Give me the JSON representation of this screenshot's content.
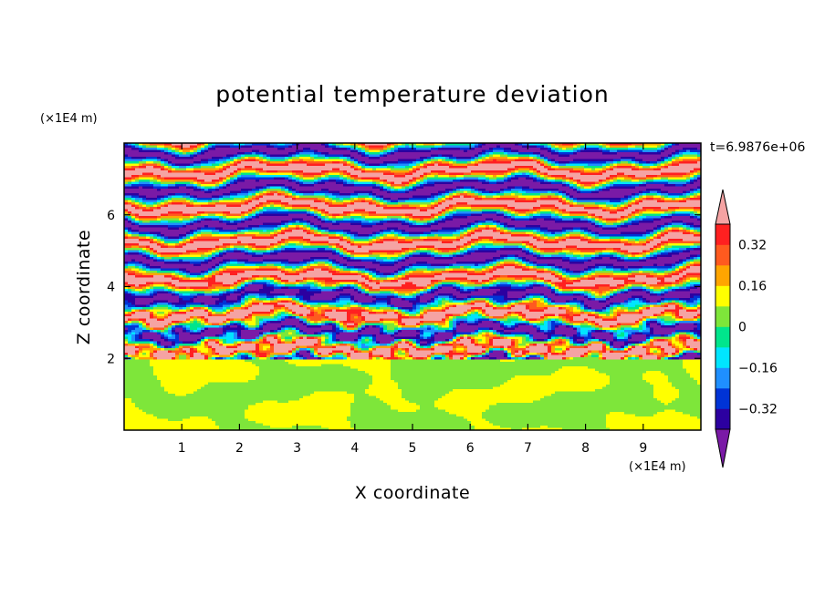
{
  "chart_data": {
    "type": "heatmap",
    "title": "potential temperature deviation",
    "xlabel": "X coordinate",
    "ylabel": "Z coordinate",
    "x_unit": "(×1E4 m)",
    "y_unit": "(×1E4 m)",
    "time_label": "t=6.9876e+06",
    "xlim": [
      0,
      10
    ],
    "ylim": [
      0,
      8
    ],
    "x_ticks": [
      "1",
      "2",
      "3",
      "4",
      "5",
      "6",
      "7",
      "8",
      "9"
    ],
    "y_ticks": [
      "2",
      "4",
      "6"
    ],
    "colorbar": {
      "levels": [
        -0.4,
        -0.32,
        -0.24,
        -0.16,
        -0.08,
        0,
        0.08,
        0.16,
        0.24,
        0.32,
        0.4
      ],
      "tick_labels": [
        "0.32",
        "0.16",
        "0",
        "−0.16",
        "−0.32"
      ],
      "tick_values": [
        0.32,
        0.16,
        0,
        -0.16,
        -0.32
      ],
      "colors": [
        "#7a1aa6",
        "#2c00a0",
        "#0033d6",
        "#1f8fff",
        "#00e5ff",
        "#00e58c",
        "#7ee63a",
        "#ffff00",
        "#ffa500",
        "#ff5a1f",
        "#ff2020",
        "#f5a3a3"
      ],
      "extend": "both"
    },
    "regions": {
      "lower_layer_z": [
        0,
        2
      ],
      "lower_layer_colors": [
        "#00e58c",
        "#7ee63a"
      ],
      "upper_layer_z": [
        2,
        8
      ],
      "upper_layer_colors": [
        "#f5a3a3",
        "#7a1aa6"
      ]
    }
  }
}
